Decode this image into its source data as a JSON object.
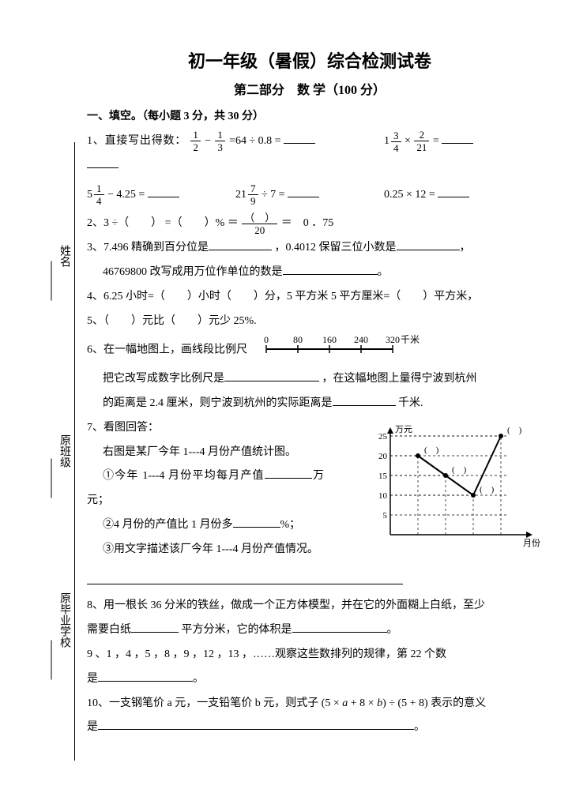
{
  "title": "初一年级（暑假）综合检测试卷",
  "subtitle": "第二部分　数 学（100 分）",
  "section1": "一、填空。（每小题 3 分，共 30 分）",
  "sidebar": {
    "name": "姓名",
    "class": "原班级",
    "school": "原毕业学校"
  },
  "q1": {
    "label": "1、直接写出得数：",
    "e1a": "1",
    "e1b": "2",
    "e1c": "1",
    "e1d": "3",
    "e2": "64 ÷ 0.8 =",
    "e3w": "1",
    "e3a": "3",
    "e3b": "4",
    "e3c": "2",
    "e3d": "21",
    "e4w": "5",
    "e4a": "1",
    "e4b": "4",
    "e4t": "− 4.25 =",
    "e5w": "21",
    "e5a": "7",
    "e5b": "9",
    "e5t": "÷ 7 =",
    "e6": "0.25 × 12 ="
  },
  "q2": {
    "pre": "2、3 ÷（　　） =（　　）% ＝",
    "denom": "20",
    "post": "＝　0 ．75"
  },
  "q3": {
    "a": "3、7.496 精确到百分位是",
    "b": "，0.4012 保留三位小数是",
    "c": "，",
    "d": "46769800 改写成用万位作单位的数是",
    "e": "。"
  },
  "q4": "4、6.25 小时=（　　）小时（　　）分，5 平方米 5 平方厘米=（　　）平方米，",
  "q5": "5、（　　）元比（　　）元少 25%.",
  "q6": {
    "a": "6、在一幅地图上，画线段比例尺",
    "b": "把它改写成数字比例尺是",
    "c": "，在这幅地图上量得宁波到杭州",
    "d": "的距离是 2.4 厘米，则宁波到杭州的实际距离是",
    "e": "千米.",
    "ruler": {
      "ticks": [
        "0",
        "80",
        "160",
        "240",
        "320"
      ],
      "unit": "千米"
    }
  },
  "q7": {
    "a": "7、看图回答：",
    "b": "右图是某厂今年 1---4 月份产值统计图。",
    "c": "①今年 1---4 月份平均每月产值",
    "c2": "万元；",
    "d": "②4 月份的产值比 1 月份多",
    "d2": "%；",
    "e": "③用文字描述该厂今年 1---4 月份产值情况。",
    "chart": {
      "ylabel": "万元",
      "xlabel": "月份",
      "yticks": [
        5,
        10,
        15,
        20,
        25
      ],
      "points": [
        [
          1,
          20
        ],
        [
          2,
          15
        ],
        [
          3,
          10
        ],
        [
          4,
          25
        ]
      ]
    }
  },
  "q8": {
    "a": "8、用一根长 36 分米的铁丝，做成一个正方体模型，并在它的外面糊上白纸，至少",
    "b": "需要白纸",
    "c": "平方分米，它的体积是",
    "d": "。"
  },
  "q9": {
    "a": "9 、1 ，4 ，5 ，8 ，9 ，12 ，13 ，……观察这些数排列的规律，第 22 个数",
    "b": "是",
    "c": "。"
  },
  "q10": {
    "a": "10、一支钢笔价 a 元，一支铅笔价 b 元，则式子",
    "expr": "(5 × a + 8 × b) ÷ (5 + 8)",
    "b": "表示的意义",
    "c": "是",
    "d": "。"
  }
}
